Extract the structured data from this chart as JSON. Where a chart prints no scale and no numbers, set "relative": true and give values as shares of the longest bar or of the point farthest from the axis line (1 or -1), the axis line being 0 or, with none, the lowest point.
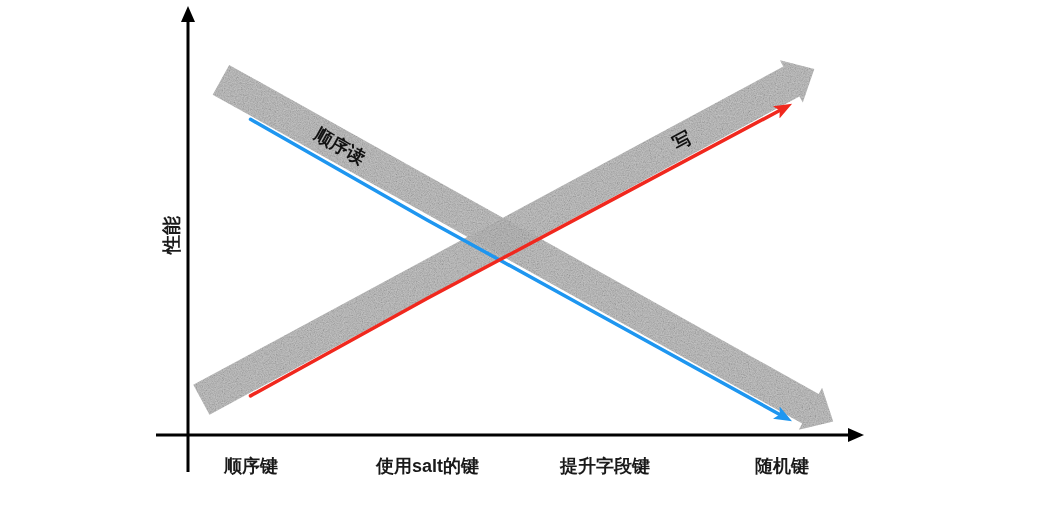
{
  "chart_data": {
    "type": "line",
    "relative": true,
    "ylabel": "性能",
    "categories": [
      "顺序键",
      "使用salt的键",
      "提升字段键",
      "随机键"
    ],
    "series": [
      {
        "name": "顺序读",
        "color": "#1e96f0",
        "values": [
          0.97,
          0.66,
          0.36,
          0.06
        ]
      },
      {
        "name": "写",
        "color": "#f0281e",
        "values": [
          0.12,
          0.42,
          0.71,
          1
        ]
      }
    ]
  }
}
